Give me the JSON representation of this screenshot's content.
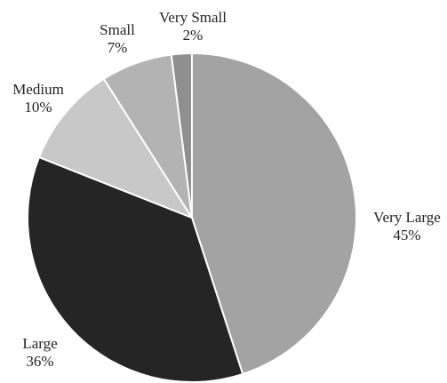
{
  "chart_data": {
    "type": "pie",
    "title": "",
    "slices": [
      {
        "label": "Very Large",
        "value": 45,
        "display_value": "45%",
        "color": "#a3a3a3"
      },
      {
        "label": "Large",
        "value": 36,
        "display_value": "36%",
        "color": "#252525"
      },
      {
        "label": "Medium",
        "value": 10,
        "display_value": "10%",
        "color": "#c8c8c8"
      },
      {
        "label": "Small",
        "value": 7,
        "display_value": "7%",
        "color": "#b3b3b3"
      },
      {
        "label": "Very Small",
        "value": 2,
        "display_value": "2%",
        "color": "#8f8f8f"
      }
    ],
    "start_angle": "12 o'clock",
    "direction": "clockwise",
    "legend": "none",
    "labels": "outside"
  }
}
